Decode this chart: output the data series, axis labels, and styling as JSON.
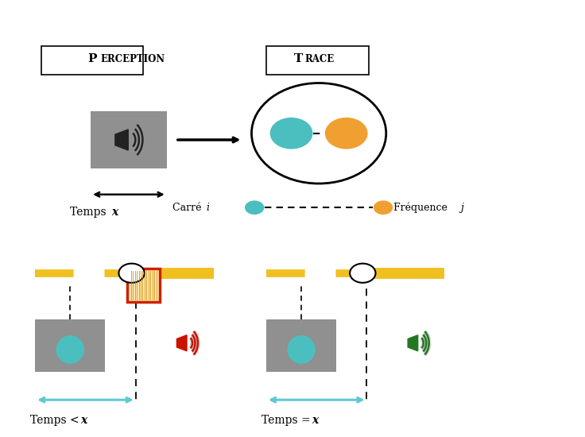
{
  "bg_color": "#ffffff",
  "colors": {
    "cyan": "#4bbfbf",
    "orange": "#f0a030",
    "gray_sq": "#909090",
    "yellow": "#f0c020",
    "cyan_arrow": "#60c8d0",
    "red_box": "#cc2200",
    "green_speaker": "#227722",
    "red_speaker": "#cc1100"
  },
  "perception_label": "PERCEPTION",
  "trace_label": "TRACE",
  "temps_x_label": "Temps ",
  "temps_x_italic": "x",
  "carre_label": "Carré ",
  "carre_italic": "i",
  "freq_label": "Fréquence ",
  "freq_italic": "j",
  "bottom_left_label": "Temps <",
  "bottom_left_italic": "x",
  "bottom_right_label": "Temps =",
  "bottom_right_italic": "x"
}
